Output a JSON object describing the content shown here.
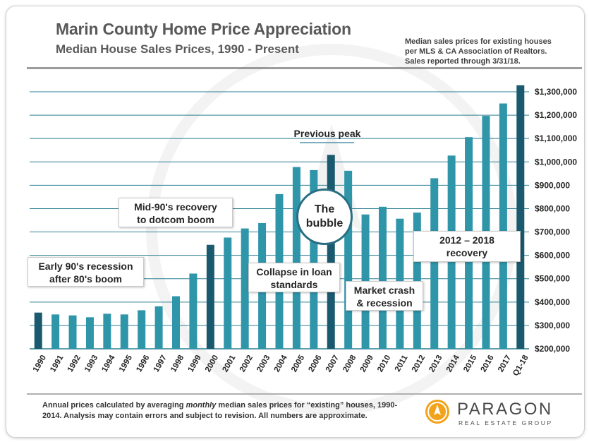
{
  "header": {
    "title": "Marin County Home Price Appreciation",
    "subtitle": "Median House Sales Prices, 1990 - Present",
    "source_lines": [
      "Median sales prices for existing houses",
      "per MLS & CA Association of Realtors.",
      "Sales reported through 3/31/18."
    ]
  },
  "annotations": {
    "early90s": [
      "Early 90's recession",
      "after 80's boom"
    ],
    "mid90s": [
      "Mid-90's recovery",
      "to dotcom boom"
    ],
    "collapse": [
      "Collapse in loan",
      "standards"
    ],
    "crash": [
      "Market crash",
      "& recession"
    ],
    "recovery": [
      "2012 – 2018",
      "recovery"
    ],
    "bubble": [
      "The",
      "bubble"
    ],
    "previous_peak": "Previous peak"
  },
  "footer": {
    "note_pre": "Annual prices calculated by averaging ",
    "note_em": "monthly",
    "note_post": " median sales prices for “existing” houses, 1990-2014.  Analysis may contain errors and subject to revision. All numbers are approximate.",
    "logo_name": "PARAGON",
    "logo_sub": "REAL ESTATE GROUP"
  },
  "colors": {
    "bar_light": "#2f95a9",
    "bar_dark": "#1b5a6e",
    "gridline": "#2c7f93"
  },
  "chart_data": {
    "type": "bar",
    "title": "Marin County Home Price Appreciation",
    "xlabel": "",
    "ylabel": "",
    "ylim": [
      200000,
      1300000
    ],
    "yticks": [
      {
        "value": 200000,
        "label": "$200,000"
      },
      {
        "value": 300000,
        "label": "$300,000"
      },
      {
        "value": 400000,
        "label": "$400,000"
      },
      {
        "value": 500000,
        "label": "$500,000"
      },
      {
        "value": 600000,
        "label": "$600,000"
      },
      {
        "value": 700000,
        "label": "$700,000"
      },
      {
        "value": 800000,
        "label": "$800,000"
      },
      {
        "value": 900000,
        "label": "$900,000"
      },
      {
        "value": 1000000,
        "label": "$1,000,000"
      },
      {
        "value": 1100000,
        "label": "$1,100,000"
      },
      {
        "value": 1200000,
        "label": "$1,200,000"
      },
      {
        "value": 1300000,
        "label": "$1,300,000"
      }
    ],
    "categories": [
      "1990",
      "1991",
      "1992",
      "1993",
      "1994",
      "1995",
      "1996",
      "1997",
      "1998",
      "1999",
      "2000",
      "2001",
      "2002",
      "2003",
      "2004",
      "2005",
      "2006",
      "2007",
      "2008",
      "2009",
      "2010",
      "2011",
      "2012",
      "2013",
      "2014",
      "2015",
      "2016",
      "2017",
      "Q1-18"
    ],
    "values": [
      355000,
      347000,
      343000,
      335000,
      350000,
      347000,
      365000,
      382000,
      425000,
      522000,
      645000,
      676000,
      715000,
      738000,
      862000,
      978000,
      965000,
      1030000,
      962000,
      775000,
      808000,
      757000,
      783000,
      930000,
      1027000,
      1106000,
      1197000,
      1250000,
      1328000
    ],
    "dark_bars": [
      "1990",
      "2000",
      "2007",
      "Q1-18"
    ],
    "grid": true
  }
}
